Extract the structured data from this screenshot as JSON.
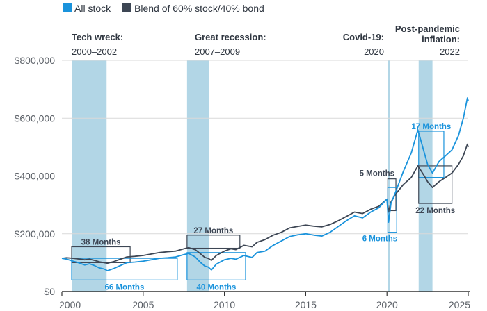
{
  "chart_data": {
    "type": "line",
    "title": "",
    "xlabel": "",
    "ylabel": "",
    "xlim": [
      2000,
      2025
    ],
    "ylim": [
      0,
      800000
    ],
    "x_ticks": [
      {
        "value": 2000,
        "label": "2000"
      },
      {
        "value": 2005,
        "label": "2005"
      },
      {
        "value": 2010,
        "label": "2010"
      },
      {
        "value": 2015,
        "label": "2015"
      },
      {
        "value": 2020,
        "label": "2020"
      },
      {
        "value": 2025,
        "label": "2025"
      }
    ],
    "y_ticks": [
      {
        "value": 0,
        "label": "$0"
      },
      {
        "value": 200000,
        "label": "$200,000"
      },
      {
        "value": 400000,
        "label": "$400,000"
      },
      {
        "value": 600000,
        "label": "$600,000"
      },
      {
        "value": 800000,
        "label": "$800,000"
      }
    ],
    "grid": "horizontal",
    "legend_position": "top-left",
    "colors": {
      "stock": "#1a93dc",
      "blend": "#3d4654",
      "shade": "#b2d6e6",
      "axis": "#333333",
      "grid": "#d9d9d9"
    },
    "series": [
      {
        "name": "All stock",
        "color": "#1a93dc",
        "x": [
          2000.0,
          2000.3,
          2000.7,
          2001.0,
          2001.4,
          2001.7,
          2002.0,
          2002.3,
          2002.6,
          2002.8,
          2003.2,
          2003.6,
          2004.0,
          2004.5,
          2005.0,
          2005.5,
          2006.0,
          2006.5,
          2007.0,
          2007.5,
          2007.8,
          2008.2,
          2008.5,
          2008.8,
          2009.0,
          2009.2,
          2009.5,
          2010.0,
          2010.4,
          2010.7,
          2011.2,
          2011.7,
          2012.0,
          2012.5,
          2013.0,
          2013.5,
          2014.0,
          2014.5,
          2015.0,
          2015.5,
          2016.0,
          2016.5,
          2017.0,
          2017.5,
          2018.0,
          2018.5,
          2019.0,
          2019.5,
          2020.0,
          2020.1,
          2020.2,
          2020.25,
          2020.5,
          2021.0,
          2021.5,
          2021.9,
          2022.3,
          2022.5,
          2022.8,
          2023.2,
          2023.6,
          2024.0,
          2024.4,
          2024.7,
          2024.95,
          2025.0
        ],
        "y": [
          115000,
          112000,
          105000,
          100000,
          92000,
          96000,
          90000,
          82000,
          78000,
          72000,
          80000,
          90000,
          100000,
          102000,
          105000,
          110000,
          115000,
          117000,
          120000,
          128000,
          132000,
          120000,
          102000,
          88000,
          85000,
          75000,
          95000,
          110000,
          115000,
          112000,
          125000,
          118000,
          135000,
          140000,
          160000,
          175000,
          190000,
          196000,
          200000,
          195000,
          192000,
          205000,
          225000,
          245000,
          262000,
          255000,
          275000,
          290000,
          320000,
          240000,
          285000,
          305000,
          340000,
          415000,
          480000,
          560000,
          480000,
          440000,
          410000,
          450000,
          470000,
          490000,
          540000,
          600000,
          670000,
          660000
        ]
      },
      {
        "name": "Blend of 60% stock/40% bond",
        "color": "#3d4654",
        "x": [
          2000.0,
          2000.3,
          2000.7,
          2001.0,
          2001.4,
          2001.7,
          2002.0,
          2002.3,
          2002.6,
          2002.8,
          2003.2,
          2003.6,
          2004.0,
          2004.5,
          2005.0,
          2005.5,
          2006.0,
          2006.5,
          2007.0,
          2007.5,
          2007.8,
          2008.2,
          2008.5,
          2008.8,
          2009.0,
          2009.2,
          2009.5,
          2010.0,
          2010.4,
          2010.7,
          2011.2,
          2011.7,
          2012.0,
          2012.5,
          2013.0,
          2013.5,
          2014.0,
          2014.5,
          2015.0,
          2015.5,
          2016.0,
          2016.5,
          2017.0,
          2017.5,
          2018.0,
          2018.5,
          2019.0,
          2019.5,
          2020.0,
          2020.1,
          2020.2,
          2020.25,
          2020.5,
          2021.0,
          2021.5,
          2021.9,
          2022.3,
          2022.5,
          2022.8,
          2023.2,
          2023.6,
          2024.0,
          2024.4,
          2024.7,
          2024.95,
          2025.0
        ],
        "y": [
          115000,
          117000,
          115000,
          113000,
          110000,
          112000,
          108000,
          103000,
          100000,
          98000,
          104000,
          112000,
          120000,
          122000,
          125000,
          130000,
          135000,
          138000,
          140000,
          148000,
          152000,
          145000,
          132000,
          118000,
          115000,
          108000,
          125000,
          140000,
          148000,
          145000,
          160000,
          155000,
          170000,
          180000,
          195000,
          205000,
          220000,
          225000,
          230000,
          226000,
          224000,
          232000,
          245000,
          260000,
          275000,
          270000,
          285000,
          295000,
          320000,
          275000,
          300000,
          310000,
          335000,
          370000,
          395000,
          435000,
          400000,
          380000,
          360000,
          380000,
          395000,
          410000,
          440000,
          470000,
          510000,
          500000
        ]
      }
    ],
    "periods": [
      {
        "title": "Tech wreck:",
        "years": "2000–2002",
        "start": 2000.6,
        "end": 2002.75
      },
      {
        "title": "Great recession:",
        "years": "2007–2009",
        "start": 2007.7,
        "end": 2009.05
      },
      {
        "title": "Covid-19:",
        "years": "2020",
        "start": 2020.05,
        "end": 2020.2
      },
      {
        "title": "Post-pandemic inflation:",
        "years": "2022",
        "start": 2021.95,
        "end": 2022.8
      }
    ],
    "recovery_annotations": [
      {
        "label": "38 Months",
        "series": "blend",
        "x0": 2000.6,
        "x1": 2004.2,
        "y0": 100000,
        "y1": 155000,
        "label_pos": "top"
      },
      {
        "label": "66 Months",
        "series": "stock",
        "x0": 2000.6,
        "x1": 2007.1,
        "y0": 40000,
        "y1": 115000,
        "label_pos": "bottom"
      },
      {
        "label": "27 Months",
        "series": "blend",
        "x0": 2007.7,
        "x1": 2010.95,
        "y0": 150000,
        "y1": 195000,
        "label_pos": "top"
      },
      {
        "label": "40 Months",
        "series": "stock",
        "x0": 2007.7,
        "x1": 2011.3,
        "y0": 40000,
        "y1": 135000,
        "label_pos": "bottom"
      },
      {
        "label": "5 Months",
        "series": "blend",
        "x0": 2020.05,
        "x1": 2020.55,
        "y0": 280000,
        "y1": 390000,
        "label_pos": "top-left"
      },
      {
        "label": "6 Months",
        "series": "stock",
        "x0": 2020.05,
        "x1": 2020.6,
        "y0": 205000,
        "y1": 360000,
        "label_pos": "bottom-left"
      },
      {
        "label": "17 Months",
        "series": "stock",
        "x0": 2021.95,
        "x1": 2023.5,
        "y0": 395000,
        "y1": 555000,
        "label_pos": "top"
      },
      {
        "label": "22 Months",
        "series": "blend",
        "x0": 2021.95,
        "x1": 2024.0,
        "y0": 305000,
        "y1": 435000,
        "label_pos": "bottom"
      }
    ]
  }
}
